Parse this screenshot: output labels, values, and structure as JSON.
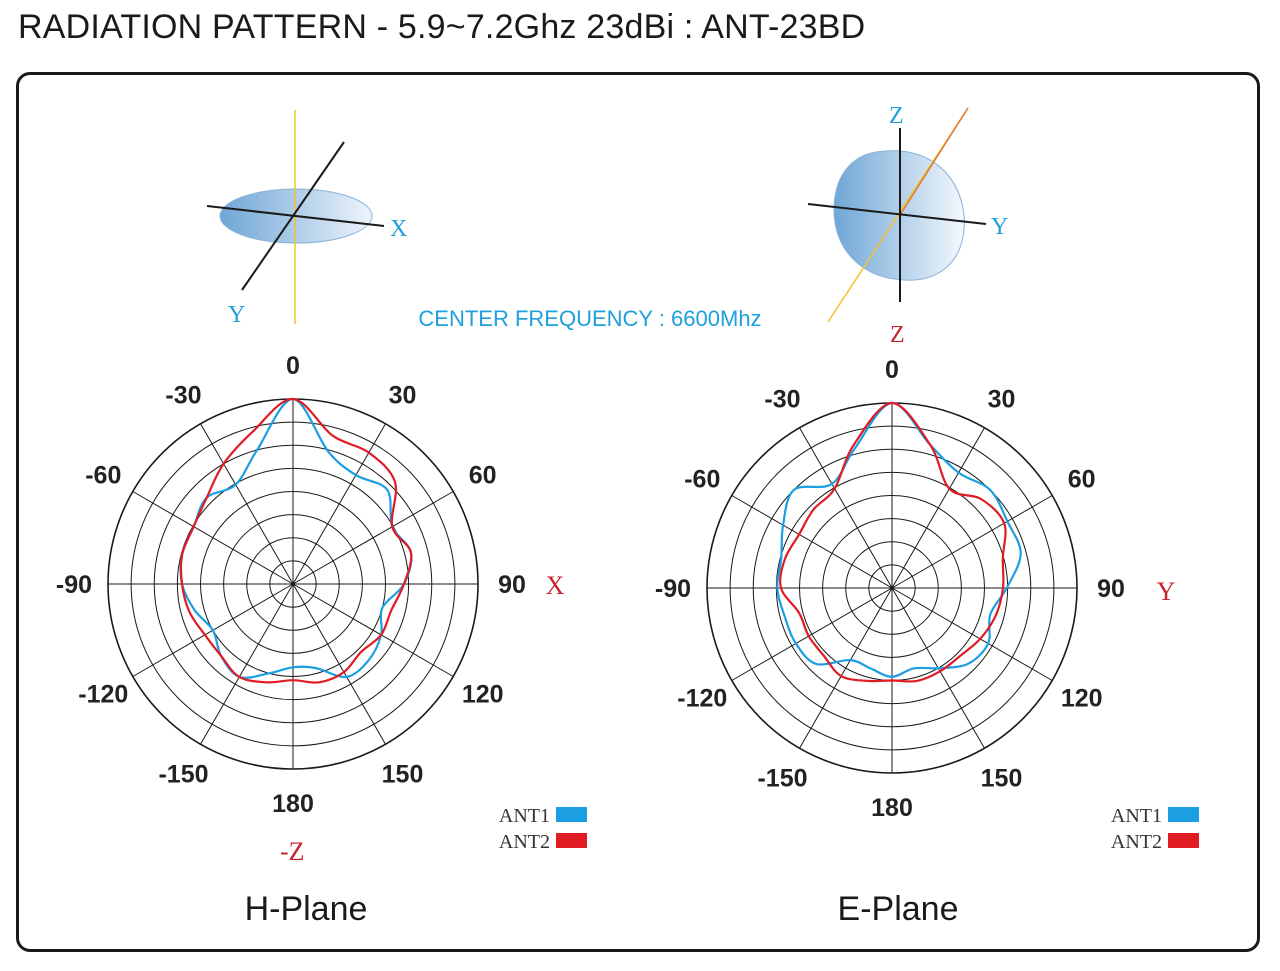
{
  "title": "RADIATION PATTERN - 5.9~7.2Ghz 23dBi : ANT-23BD",
  "center_frequency": "CENTER FREQUENCY : 6600Mhz",
  "colors": {
    "ant1": "#1c9ee3",
    "ant2": "#e01b24",
    "axis_label_blue": "#1ea0dc",
    "axis_label_red": "#c8232c"
  },
  "chart_data": [
    {
      "type": "polar",
      "plane_title": "H-Plane",
      "axis_diagram": {
        "labels": [
          "X",
          "Y"
        ]
      },
      "side_label": "X",
      "bottom_label": "-Z",
      "angle_labels": [
        "0",
        "30",
        "60",
        "90",
        "120",
        "150",
        "180",
        "-150",
        "-120",
        "-90",
        "-60",
        "-30"
      ],
      "legend": [
        "ANT1",
        "ANT2"
      ],
      "series": [
        {
          "name": "ANT1",
          "angles": [
            0,
            15,
            30,
            45,
            60,
            75,
            90,
            105,
            120,
            135,
            150,
            165,
            180,
            195,
            210,
            225,
            240,
            255,
            270,
            285,
            300,
            315,
            330,
            345
          ],
          "values": [
            1.0,
            0.74,
            0.68,
            0.72,
            0.62,
            0.66,
            0.6,
            0.5,
            0.55,
            0.58,
            0.58,
            0.47,
            0.45,
            0.5,
            0.58,
            0.55,
            0.5,
            0.55,
            0.6,
            0.62,
            0.62,
            0.66,
            0.62,
            0.75
          ]
        },
        {
          "name": "ANT2",
          "angles": [
            0,
            15,
            30,
            45,
            60,
            75,
            90,
            105,
            120,
            135,
            150,
            165,
            180,
            195,
            210,
            225,
            240,
            255,
            270,
            285,
            300,
            315,
            330,
            345
          ],
          "values": [
            1.0,
            0.83,
            0.82,
            0.78,
            0.62,
            0.66,
            0.6,
            0.55,
            0.55,
            0.52,
            0.55,
            0.55,
            0.52,
            0.55,
            0.58,
            0.55,
            0.55,
            0.58,
            0.6,
            0.62,
            0.62,
            0.66,
            0.75,
            0.85
          ]
        }
      ]
    },
    {
      "type": "polar",
      "plane_title": "E-Plane",
      "axis_diagram": {
        "labels": [
          "Z",
          "Y",
          "Z"
        ]
      },
      "side_label": "Y",
      "bottom_label": "",
      "angle_labels": [
        "0",
        "30",
        "60",
        "90",
        "120",
        "150",
        "180",
        "-150",
        "-120",
        "-90",
        "-60",
        "-30"
      ],
      "legend": [
        "ANT1",
        "ANT2"
      ],
      "series": [
        {
          "name": "ANT1",
          "angles": [
            0,
            15,
            30,
            45,
            60,
            75,
            90,
            105,
            120,
            135,
            150,
            165,
            180,
            195,
            210,
            225,
            240,
            255,
            270,
            285,
            300,
            315,
            330,
            345
          ],
          "values": [
            1.0,
            0.8,
            0.72,
            0.75,
            0.72,
            0.72,
            0.62,
            0.55,
            0.6,
            0.58,
            0.5,
            0.45,
            0.48,
            0.45,
            0.45,
            0.58,
            0.6,
            0.6,
            0.62,
            0.62,
            0.68,
            0.75,
            0.65,
            0.78
          ]
        },
        {
          "name": "ANT2",
          "angles": [
            0,
            15,
            30,
            45,
            60,
            75,
            90,
            105,
            120,
            135,
            150,
            165,
            180,
            195,
            210,
            225,
            240,
            255,
            270,
            285,
            300,
            315,
            330,
            345
          ],
          "values": [
            1.0,
            0.8,
            0.62,
            0.68,
            0.7,
            0.62,
            0.6,
            0.58,
            0.55,
            0.52,
            0.52,
            0.52,
            0.5,
            0.52,
            0.55,
            0.52,
            0.52,
            0.52,
            0.6,
            0.6,
            0.58,
            0.6,
            0.62,
            0.8
          ]
        }
      ]
    }
  ]
}
